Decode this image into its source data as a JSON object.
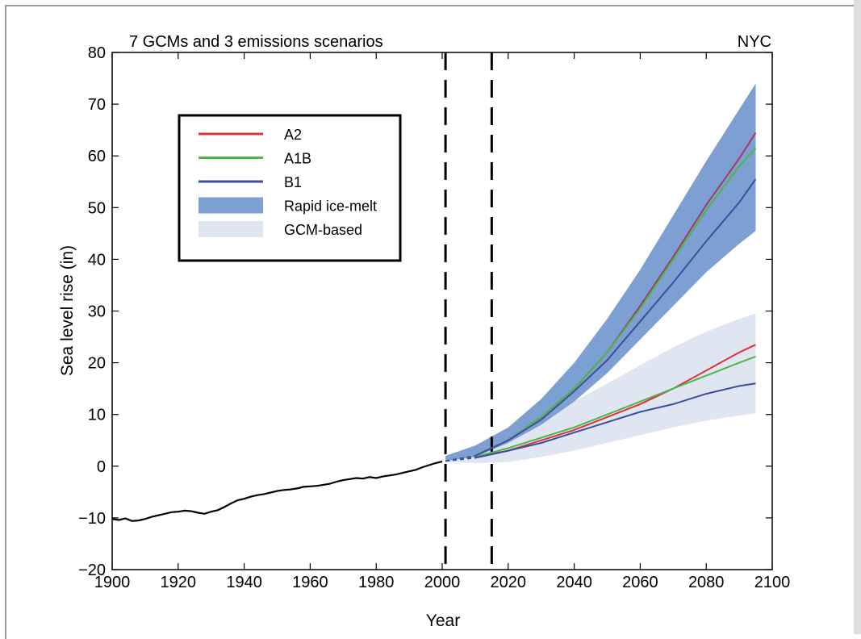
{
  "chart_data": {
    "type": "line",
    "title_left": "7 GCMs and 3 emissions scenarios",
    "title_right": "NYC",
    "xlabel": "Year",
    "ylabel": "Sea level rise (in)",
    "xlim": [
      1900,
      2100
    ],
    "ylim": [
      -20,
      80
    ],
    "xticks": [
      "1900",
      "1920",
      "1940",
      "1960",
      "1980",
      "2000",
      "2020",
      "2040",
      "2060",
      "2080",
      "2100"
    ],
    "yticks": [
      "−20",
      "−10",
      "0",
      "10",
      "20",
      "30",
      "40",
      "50",
      "60",
      "70",
      "80"
    ],
    "grid": false,
    "legend_position": "upper-left",
    "legend": [
      {
        "label": "A2",
        "color": "#e0313a",
        "kind": "line"
      },
      {
        "label": "A1B",
        "color": "#4cb748",
        "kind": "line"
      },
      {
        "label": "B1",
        "color": "#3a4fa0",
        "kind": "line"
      },
      {
        "label": "Rapid ice-melt",
        "color": "#7e9fd2",
        "kind": "patch"
      },
      {
        "label": "GCM-based",
        "color": "#dfe6f2",
        "kind": "patch"
      }
    ],
    "vlines": [
      2001,
      2015
    ],
    "observed": {
      "name": "",
      "color": "#000000",
      "x": [
        1900,
        1902,
        1904,
        1906,
        1908,
        1910,
        1912,
        1914,
        1916,
        1918,
        1920,
        1922,
        1924,
        1926,
        1928,
        1930,
        1932,
        1934,
        1936,
        1938,
        1940,
        1942,
        1944,
        1946,
        1948,
        1950,
        1952,
        1954,
        1956,
        1958,
        1960,
        1962,
        1964,
        1966,
        1968,
        1970,
        1972,
        1974,
        1976,
        1978,
        1980,
        1982,
        1984,
        1986,
        1988,
        1990,
        1992,
        1994,
        1996,
        1998,
        2000
      ],
      "y": [
        -10.2,
        -10.4,
        -10.1,
        -10.6,
        -10.5,
        -10.2,
        -9.8,
        -9.5,
        -9.2,
        -8.9,
        -8.8,
        -8.6,
        -8.7,
        -9.0,
        -9.2,
        -8.8,
        -8.5,
        -7.9,
        -7.2,
        -6.6,
        -6.3,
        -5.9,
        -5.6,
        -5.4,
        -5.1,
        -4.8,
        -4.6,
        -4.5,
        -4.3,
        -4.0,
        -3.9,
        -3.8,
        -3.6,
        -3.4,
        -3.0,
        -2.7,
        -2.5,
        -2.3,
        -2.4,
        -2.1,
        -2.3,
        -2.0,
        -1.8,
        -1.6,
        -1.3,
        -1.0,
        -0.7,
        -0.2,
        0.2,
        0.6,
        0.9
      ]
    },
    "x_proj": [
      2001,
      2010,
      2020,
      2030,
      2040,
      2050,
      2060,
      2070,
      2080,
      2090,
      2095
    ],
    "rapid_band": {
      "color": "#7e9fd2",
      "upper": [
        2.0,
        4.0,
        7.5,
        13.0,
        20.0,
        28.5,
        38.0,
        48.5,
        59.0,
        69.0,
        74.0
      ],
      "lower": [
        1.0,
        1.8,
        4.5,
        8.0,
        12.5,
        18.0,
        24.5,
        31.0,
        37.5,
        43.0,
        45.5
      ]
    },
    "gcm_band": {
      "color": "#dfe6f2",
      "upper": [
        1.2,
        2.0,
        5.5,
        9.0,
        12.5,
        16.0,
        19.5,
        23.0,
        26.0,
        28.5,
        29.5
      ],
      "lower": [
        0.8,
        0.6,
        0.8,
        1.8,
        3.0,
        4.5,
        6.0,
        7.5,
        8.8,
        9.8,
        10.2
      ]
    },
    "series": [
      {
        "name": "A2",
        "color": "#e0313a",
        "group": "gcm",
        "values": [
          1.0,
          1.8,
          3.0,
          5.0,
          7.0,
          9.5,
          12.0,
          15.0,
          18.5,
          22.0,
          23.5
        ]
      },
      {
        "name": "A1B",
        "color": "#4cb748",
        "group": "gcm",
        "values": [
          1.0,
          1.8,
          3.5,
          5.5,
          7.5,
          10.0,
          12.5,
          15.0,
          17.5,
          20.0,
          21.2
        ]
      },
      {
        "name": "B1",
        "color": "#3a4fa0",
        "group": "gcm",
        "values": [
          1.0,
          1.6,
          3.0,
          4.5,
          6.5,
          8.5,
          10.5,
          12.0,
          14.0,
          15.5,
          16.0
        ]
      },
      {
        "name": "A2",
        "color": "#a23a6a",
        "group": "rapid",
        "values": [
          1.0,
          2.0,
          5.0,
          9.5,
          15.0,
          22.0,
          31.0,
          40.5,
          50.5,
          59.5,
          64.5
        ]
      },
      {
        "name": "A1B",
        "color": "#4cb748",
        "group": "rapid",
        "values": [
          1.0,
          2.0,
          5.0,
          9.5,
          15.0,
          22.0,
          30.5,
          40.0,
          49.5,
          58.0,
          61.5
        ]
      },
      {
        "name": "B1",
        "color": "#3a4fa0",
        "group": "rapid",
        "values": [
          1.0,
          2.0,
          5.0,
          9.0,
          14.5,
          20.5,
          28.0,
          35.5,
          43.5,
          51.0,
          55.5
        ]
      }
    ]
  }
}
